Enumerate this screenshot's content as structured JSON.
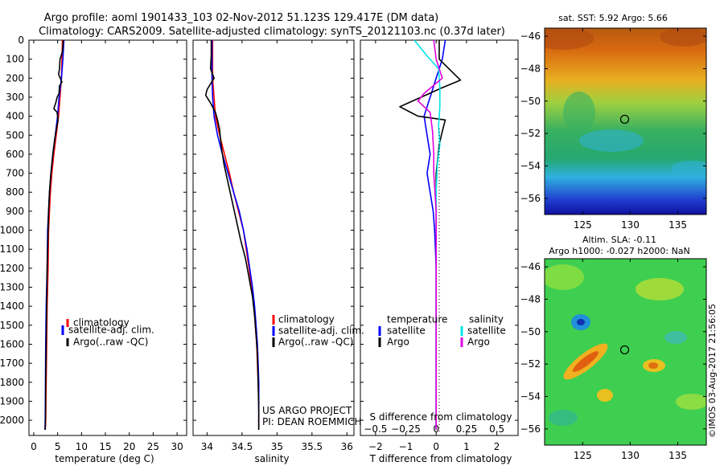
{
  "header": {
    "line1": "Argo profile: aoml 1901433_103 02-Nov-2012 51.123S 129.417E (DM data)",
    "line2": "Climatology: CARS2009. Satellite-adjusted climatology: synTS_20121103.nc (0.37d later)"
  },
  "colors": {
    "climatology": "#ff0000",
    "satellite": "#0000ff",
    "argo": "#000000",
    "sat_salinity": "#00e5e5",
    "argo_salinity": "#e000e0"
  },
  "legend": {
    "climatology": "climatology",
    "satellite_adj": "satellite-adj. clim.",
    "argo": "Argo(..raw -QC)",
    "temperature_heading": "temperature",
    "salinity_heading": "salinity",
    "satellite": "satellite",
    "argo_short": "Argo"
  },
  "credits": {
    "project": "US ARGO PROJECT",
    "pi": "PI: DEAN ROEMMICH",
    "watermark": "©IMOS 03-Aug-2017 21:56:05"
  },
  "chart_data": [
    {
      "id": "temperature",
      "type": "line",
      "xlabel": "temperature (deg C)",
      "ylabel": "",
      "xlim": [
        -1,
        32
      ],
      "ylim": [
        2080,
        0
      ],
      "xticks": [
        0,
        5,
        10,
        15,
        20,
        25,
        30
      ],
      "yticks": [
        0,
        100,
        200,
        300,
        400,
        500,
        600,
        700,
        800,
        900,
        1000,
        1100,
        1200,
        1300,
        1400,
        1500,
        1600,
        1700,
        1800,
        1900,
        2000
      ],
      "series": [
        {
          "name": "climatology",
          "color": "#ff0000",
          "points": [
            [
              6.0,
              0
            ],
            [
              5.9,
              100
            ],
            [
              5.8,
              200
            ],
            [
              5.5,
              300
            ],
            [
              5.2,
              400
            ],
            [
              4.7,
              500
            ],
            [
              4.2,
              600
            ],
            [
              3.8,
              700
            ],
            [
              3.5,
              800
            ],
            [
              3.3,
              900
            ],
            [
              3.1,
              1000
            ],
            [
              3.0,
              1200
            ],
            [
              2.8,
              1400
            ],
            [
              2.7,
              1600
            ],
            [
              2.6,
              1800
            ],
            [
              2.5,
              2000
            ],
            [
              2.4,
              2050
            ]
          ]
        },
        {
          "name": "satellite-adj. clim.",
          "color": "#0000ff",
          "points": [
            [
              6.3,
              0
            ],
            [
              6.1,
              100
            ],
            [
              5.8,
              200
            ],
            [
              5.3,
              300
            ],
            [
              5.0,
              400
            ],
            [
              4.5,
              500
            ],
            [
              4.0,
              600
            ],
            [
              3.6,
              700
            ],
            [
              3.3,
              800
            ],
            [
              3.1,
              900
            ],
            [
              2.9,
              1000
            ],
            [
              2.8,
              1200
            ],
            [
              2.6,
              1400
            ],
            [
              2.5,
              1600
            ],
            [
              2.45,
              1800
            ],
            [
              2.4,
              2000
            ],
            [
              2.35,
              2050
            ]
          ]
        },
        {
          "name": "Argo(..raw -QC)",
          "color": "#000000",
          "points": [
            [
              6.2,
              0
            ],
            [
              6.0,
              60
            ],
            [
              5.5,
              100
            ],
            [
              5.4,
              150
            ],
            [
              5.2,
              180
            ],
            [
              5.9,
              220
            ],
            [
              5.4,
              240
            ],
            [
              5.3,
              280
            ],
            [
              4.9,
              300
            ],
            [
              4.6,
              330
            ],
            [
              4.2,
              360
            ],
            [
              4.9,
              380
            ],
            [
              5.1,
              420
            ],
            [
              4.8,
              460
            ],
            [
              4.4,
              520
            ],
            [
              4.0,
              600
            ],
            [
              3.6,
              700
            ],
            [
              3.3,
              800
            ],
            [
              3.1,
              900
            ],
            [
              3.0,
              1000
            ],
            [
              2.9,
              1100
            ],
            [
              2.8,
              1200
            ],
            [
              2.7,
              1400
            ],
            [
              2.6,
              1600
            ],
            [
              2.5,
              1800
            ],
            [
              2.45,
              2000
            ],
            [
              2.4,
              2050
            ]
          ]
        }
      ]
    },
    {
      "id": "salinity",
      "type": "line",
      "xlabel": "salinity",
      "ylabel": "",
      "xlim": [
        33.8,
        36.1
      ],
      "ylim": [
        2080,
        0
      ],
      "xticks": [
        34,
        34.5,
        35,
        35.5,
        36
      ],
      "yticks": [
        0,
        100,
        200,
        300,
        400,
        500,
        600,
        700,
        800,
        900,
        1000,
        1100,
        1200,
        1300,
        1400,
        1500,
        1600,
        1700,
        1800,
        1900,
        2000
      ],
      "series": [
        {
          "name": "climatology",
          "color": "#ff0000",
          "points": [
            [
              34.08,
              0
            ],
            [
              34.08,
              100
            ],
            [
              34.08,
              200
            ],
            [
              34.1,
              300
            ],
            [
              34.12,
              400
            ],
            [
              34.18,
              500
            ],
            [
              34.25,
              600
            ],
            [
              34.32,
              700
            ],
            [
              34.38,
              800
            ],
            [
              34.45,
              900
            ],
            [
              34.52,
              1000
            ],
            [
              34.56,
              1100
            ],
            [
              34.6,
              1200
            ],
            [
              34.64,
              1300
            ],
            [
              34.67,
              1400
            ],
            [
              34.69,
              1500
            ],
            [
              34.71,
              1600
            ],
            [
              34.72,
              1700
            ],
            [
              34.73,
              1800
            ],
            [
              34.74,
              1900
            ],
            [
              34.74,
              2000
            ],
            [
              34.74,
              2050
            ]
          ]
        },
        {
          "name": "satellite-adj. clim.",
          "color": "#0000ff",
          "points": [
            [
              34.07,
              0
            ],
            [
              34.07,
              100
            ],
            [
              34.07,
              200
            ],
            [
              34.08,
              300
            ],
            [
              34.1,
              400
            ],
            [
              34.15,
              500
            ],
            [
              34.22,
              600
            ],
            [
              34.3,
              700
            ],
            [
              34.38,
              800
            ],
            [
              34.46,
              900
            ],
            [
              34.52,
              1000
            ],
            [
              34.57,
              1100
            ],
            [
              34.61,
              1200
            ],
            [
              34.65,
              1300
            ],
            [
              34.68,
              1400
            ],
            [
              34.7,
              1500
            ],
            [
              34.72,
              1600
            ],
            [
              34.73,
              1700
            ],
            [
              34.74,
              1800
            ],
            [
              34.74,
              1900
            ],
            [
              34.74,
              2000
            ],
            [
              34.74,
              2050
            ]
          ]
        },
        {
          "name": "Argo(..raw -QC)",
          "color": "#000000",
          "points": [
            [
              34.06,
              0
            ],
            [
              34.06,
              80
            ],
            [
              34.05,
              150
            ],
            [
              34.1,
              200
            ],
            [
              34.05,
              230
            ],
            [
              34.0,
              260
            ],
            [
              33.98,
              290
            ],
            [
              34.05,
              330
            ],
            [
              34.12,
              380
            ],
            [
              34.15,
              420
            ],
            [
              34.18,
              470
            ],
            [
              34.2,
              550
            ],
            [
              34.24,
              650
            ],
            [
              34.3,
              750
            ],
            [
              34.36,
              850
            ],
            [
              34.42,
              950
            ],
            [
              34.48,
              1050
            ],
            [
              34.55,
              1150
            ],
            [
              34.6,
              1250
            ],
            [
              34.65,
              1350
            ],
            [
              34.68,
              1450
            ],
            [
              34.7,
              1550
            ],
            [
              34.72,
              1650
            ],
            [
              34.73,
              1800
            ],
            [
              34.74,
              1950
            ],
            [
              34.74,
              2050
            ]
          ]
        }
      ]
    },
    {
      "id": "difference",
      "type": "line",
      "xlabel": "T difference from climatology",
      "xlabel_top": "S difference from climatology",
      "ylabel": "",
      "xlim": [
        -2.5,
        2.7
      ],
      "ylim": [
        2080,
        0
      ],
      "xticks": [
        -2,
        -1,
        0,
        1,
        2
      ],
      "xticks_s": [
        -0.5,
        -0.25,
        0,
        0.25,
        0.5
      ],
      "yticks": [
        0,
        100,
        200,
        300,
        400,
        500,
        600,
        700,
        800,
        900,
        1000,
        1100,
        1200,
        1300,
        1400,
        1500,
        1600,
        1700,
        1800,
        1900,
        2000
      ],
      "series": [
        {
          "name": "temperature satellite",
          "color": "#0000ff",
          "points": [
            [
              0.3,
              0
            ],
            [
              0.2,
              100
            ],
            [
              0,
              200
            ],
            [
              -0.2,
              300
            ],
            [
              -0.4,
              400
            ],
            [
              -0.3,
              500
            ],
            [
              -0.2,
              600
            ],
            [
              -0.3,
              700
            ],
            [
              -0.2,
              800
            ],
            [
              -0.1,
              900
            ],
            [
              -0.05,
              1000
            ],
            [
              0,
              1200
            ],
            [
              0,
              1500
            ],
            [
              0,
              1800
            ],
            [
              0,
              2050
            ]
          ]
        },
        {
          "name": "temperature Argo",
          "color": "#000000",
          "points": [
            [
              0.1,
              0
            ],
            [
              0.1,
              100
            ],
            [
              0.8,
              210
            ],
            [
              0.2,
              250
            ],
            [
              -0.5,
              300
            ],
            [
              -1.2,
              350
            ],
            [
              -0.6,
              400
            ],
            [
              0.3,
              420
            ],
            [
              0.2,
              480
            ],
            [
              0.1,
              550
            ],
            [
              0,
              700
            ],
            [
              0,
              900
            ],
            [
              0,
              1100
            ],
            [
              0,
              1300
            ],
            [
              0,
              1500
            ],
            [
              0,
              2050
            ]
          ]
        },
        {
          "name": "salinity satellite",
          "color": "#00e5e5",
          "points": [
            [
              -0.18,
              0
            ],
            [
              -0.08,
              80
            ],
            [
              0.02,
              150
            ],
            [
              0.03,
              250
            ],
            [
              0.03,
              350
            ],
            [
              0.02,
              450
            ],
            [
              0.03,
              550
            ],
            [
              0.01,
              650
            ],
            [
              0.0,
              800
            ],
            [
              0,
              1000
            ],
            [
              0,
              1500
            ],
            [
              0,
              2050
            ]
          ]
        },
        {
          "name": "salinity Argo",
          "color": "#e000e0",
          "points": [
            [
              -0.02,
              0
            ],
            [
              0.0,
              100
            ],
            [
              0.05,
              200
            ],
            [
              -0.1,
              280
            ],
            [
              -0.15,
              320
            ],
            [
              -0.05,
              380
            ],
            [
              -0.03,
              480
            ],
            [
              -0.02,
              600
            ],
            [
              -0.02,
              700
            ],
            [
              0,
              900
            ],
            [
              0,
              1200
            ],
            [
              0,
              1500
            ],
            [
              0,
              2050
            ]
          ]
        }
      ]
    },
    {
      "id": "sst_map",
      "type": "heatmap",
      "title": "sat. SST: 5.92  Argo: 5.66",
      "xlim": [
        121,
        138
      ],
      "ylim": [
        -57,
        -45.5
      ],
      "xticks": [
        125,
        130,
        135
      ],
      "yticks": [
        -46,
        -48,
        -50,
        -52,
        -54,
        -56
      ],
      "marker": {
        "lon": 129.417,
        "lat": -51.123
      }
    },
    {
      "id": "sla_map",
      "type": "heatmap",
      "title": "Altim. SLA: -0.11",
      "subtitle": "Argo h1000: -0.027  h2000: NaN",
      "xlim": [
        121,
        138
      ],
      "ylim": [
        -57,
        -45.5
      ],
      "xticks": [
        125,
        130,
        135
      ],
      "yticks": [
        -46,
        -48,
        -50,
        -52,
        -54,
        -56
      ],
      "marker": {
        "lon": 129.417,
        "lat": -51.123
      }
    }
  ]
}
